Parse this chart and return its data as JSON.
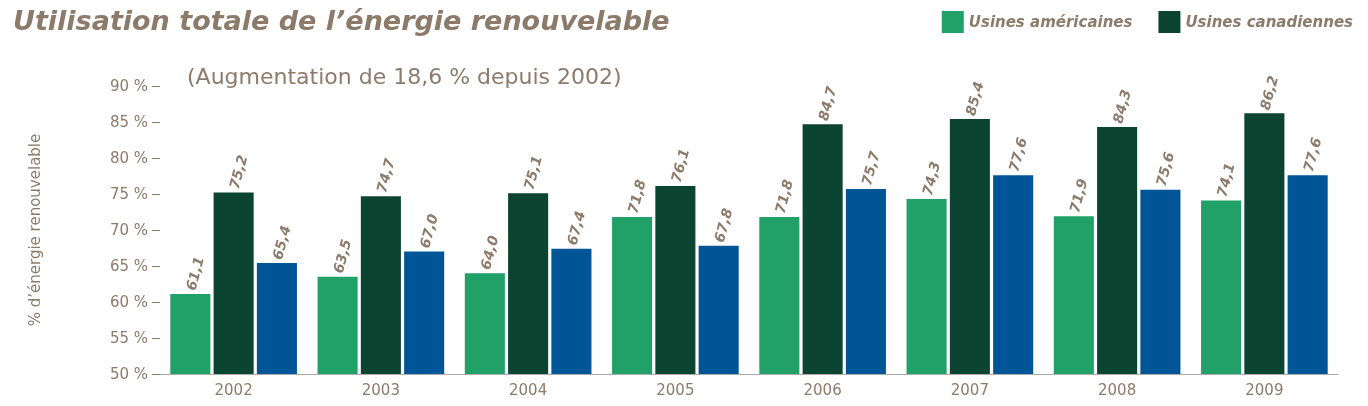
{
  "chart_data": {
    "type": "bar",
    "title": "Utilisation totale de l’énergie renouvelable",
    "subtitle": "(Augmentation de 18,6 % depuis 2002)",
    "ylabel": "% d’énergie renouvelable",
    "categories": [
      "2002",
      "2003",
      "2004",
      "2005",
      "2006",
      "2007",
      "2008",
      "2009"
    ],
    "series": [
      {
        "name": "Usines américaines",
        "color": "#21a067",
        "values": [
          61.1,
          63.5,
          64.0,
          71.8,
          71.8,
          74.3,
          71.9,
          74.1
        ],
        "value_labels": [
          "61,1",
          "63,5",
          "64,0",
          "71,8",
          "71,8",
          "74,3",
          "71,9",
          "74,1"
        ]
      },
      {
        "name": "Usines canadiennes",
        "color": "#0b4430",
        "values": [
          75.2,
          74.7,
          75.1,
          76.1,
          84.7,
          85.4,
          84.3,
          86.2
        ],
        "value_labels": [
          "75,2",
          "74,7",
          "75,1",
          "76,1",
          "84,7",
          "85,4",
          "84,3",
          "86,2"
        ]
      },
      {
        "color": "#005596",
        "values": [
          65.4,
          67.0,
          67.4,
          67.8,
          75.7,
          77.6,
          75.6,
          77.6
        ],
        "value_labels": [
          "65,4",
          "67,0",
          "67,4",
          "67,8",
          "75,7",
          "77,6",
          "75,6",
          "77,6"
        ]
      }
    ],
    "ylim": [
      50,
      90
    ],
    "yticks": [
      {
        "value": 50,
        "label": "50 %"
      },
      {
        "value": 55,
        "label": "55 %"
      },
      {
        "value": 60,
        "label": "60 %"
      },
      {
        "value": 65,
        "label": "65 %"
      },
      {
        "value": 70,
        "label": "70 %"
      },
      {
        "value": 75,
        "label": "75 %"
      },
      {
        "value": 80,
        "label": "80 %"
      },
      {
        "value": 85,
        "label": "85 %"
      },
      {
        "value": 90,
        "label": "90 %"
      }
    ],
    "grid": false,
    "legend": "top right"
  }
}
